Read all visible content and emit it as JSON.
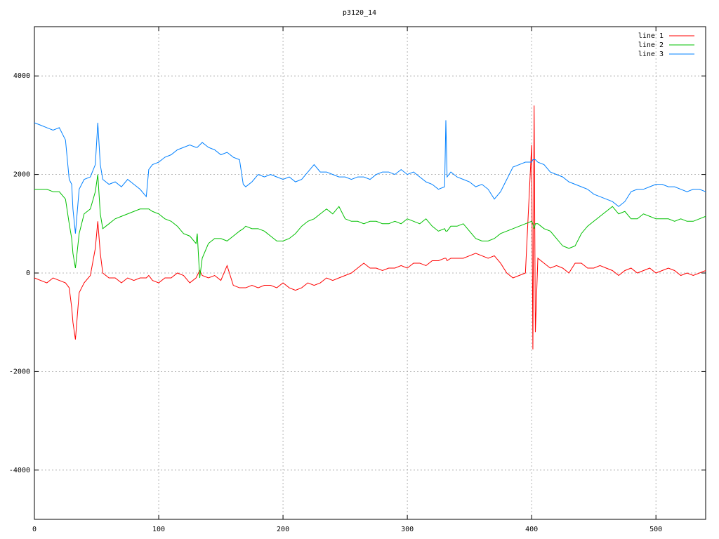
{
  "chart_data": {
    "type": "line",
    "title": "p3120_14",
    "x": [
      0,
      5,
      10,
      15,
      20,
      25,
      28,
      30,
      31,
      33,
      36,
      40,
      45,
      49,
      51,
      53,
      55,
      60,
      65,
      70,
      75,
      80,
      85,
      90,
      92,
      95,
      100,
      105,
      110,
      115,
      120,
      125,
      130,
      131,
      133,
      135,
      140,
      145,
      150,
      155,
      160,
      165,
      168,
      170,
      175,
      180,
      185,
      190,
      195,
      200,
      205,
      210,
      215,
      220,
      225,
      230,
      235,
      240,
      245,
      250,
      255,
      260,
      265,
      270,
      275,
      280,
      285,
      290,
      295,
      300,
      305,
      310,
      315,
      320,
      325,
      330,
      331,
      332,
      335,
      340,
      345,
      350,
      355,
      360,
      365,
      370,
      375,
      380,
      385,
      390,
      395,
      400,
      401,
      402,
      403,
      405,
      410,
      415,
      420,
      425,
      430,
      435,
      440,
      445,
      450,
      455,
      460,
      465,
      470,
      475,
      480,
      485,
      490,
      495,
      500,
      505,
      510,
      515,
      520,
      525,
      530,
      535,
      540
    ],
    "series": [
      {
        "name": "line 1",
        "color": "#ff0000",
        "values": [
          -100,
          -150,
          -200,
          -100,
          -150,
          -200,
          -300,
          -700,
          -1000,
          -1350,
          -400,
          -200,
          -50,
          500,
          1050,
          400,
          0,
          -100,
          -100,
          -200,
          -100,
          -150,
          -100,
          -100,
          -50,
          -150,
          -200,
          -100,
          -100,
          0,
          -50,
          -200,
          -100,
          -50,
          50,
          -50,
          -100,
          -50,
          -150,
          150,
          -250,
          -300,
          -300,
          -300,
          -250,
          -300,
          -250,
          -250,
          -300,
          -200,
          -300,
          -350,
          -300,
          -200,
          -250,
          -200,
          -100,
          -150,
          -100,
          -50,
          0,
          100,
          200,
          100,
          100,
          50,
          100,
          100,
          150,
          100,
          200,
          200,
          150,
          250,
          250,
          300,
          300,
          250,
          300,
          300,
          300,
          350,
          400,
          350,
          300,
          350,
          200,
          0,
          -100,
          -50,
          0,
          2600,
          -1550,
          3400,
          -1200,
          300,
          200,
          100,
          150,
          100,
          0,
          200,
          200,
          100,
          100,
          150,
          100,
          50,
          -50,
          50,
          100,
          0,
          50,
          100,
          0,
          50,
          100,
          50,
          -50,
          0,
          -50,
          0,
          50
        ]
      },
      {
        "name": "line 2",
        "color": "#00c000",
        "values": [
          1700,
          1700,
          1700,
          1650,
          1650,
          1500,
          1000,
          700,
          400,
          100,
          800,
          1200,
          1300,
          1650,
          2000,
          1200,
          900,
          1000,
          1100,
          1150,
          1200,
          1250,
          1300,
          1300,
          1300,
          1250,
          1200,
          1100,
          1050,
          950,
          800,
          750,
          600,
          800,
          -100,
          300,
          600,
          700,
          700,
          650,
          750,
          850,
          900,
          950,
          900,
          900,
          850,
          750,
          650,
          650,
          700,
          800,
          950,
          1050,
          1100,
          1200,
          1300,
          1200,
          1350,
          1100,
          1050,
          1050,
          1000,
          1050,
          1050,
          1000,
          1000,
          1050,
          1000,
          1100,
          1050,
          1000,
          1100,
          950,
          850,
          900,
          850,
          850,
          950,
          950,
          1000,
          850,
          700,
          650,
          650,
          700,
          800,
          850,
          900,
          950,
          1000,
          1050,
          1000,
          900,
          1000,
          1000,
          900,
          850,
          700,
          550,
          500,
          550,
          800,
          950,
          1050,
          1150,
          1250,
          1350,
          1200,
          1250,
          1100,
          1100,
          1200,
          1150,
          1100,
          1100,
          1100,
          1050,
          1100,
          1050,
          1050,
          1100,
          1150
        ]
      },
      {
        "name": "line 3",
        "color": "#0080ff",
        "values": [
          3050,
          3000,
          2950,
          2900,
          2950,
          2700,
          1900,
          1800,
          1300,
          800,
          1700,
          1900,
          1950,
          2200,
          3050,
          2200,
          1900,
          1800,
          1850,
          1750,
          1900,
          1800,
          1700,
          1550,
          2100,
          2200,
          2250,
          2350,
          2400,
          2500,
          2550,
          2600,
          2550,
          2550,
          2600,
          2650,
          2550,
          2500,
          2400,
          2450,
          2350,
          2300,
          1800,
          1750,
          1850,
          2000,
          1950,
          2000,
          1950,
          1900,
          1950,
          1850,
          1900,
          2050,
          2200,
          2050,
          2050,
          2000,
          1950,
          1950,
          1900,
          1950,
          1950,
          1900,
          2000,
          2050,
          2050,
          2000,
          2100,
          2000,
          2050,
          1950,
          1850,
          1800,
          1700,
          1750,
          3100,
          1950,
          2050,
          1950,
          1900,
          1850,
          1750,
          1800,
          1700,
          1500,
          1650,
          1900,
          2150,
          2200,
          2250,
          2250,
          2300,
          2300,
          2300,
          2250,
          2200,
          2050,
          2000,
          1950,
          1850,
          1800,
          1750,
          1700,
          1600,
          1550,
          1500,
          1450,
          1350,
          1450,
          1650,
          1700,
          1700,
          1750,
          1800,
          1800,
          1750,
          1750,
          1700,
          1650,
          1700,
          1700,
          1650
        ]
      }
    ],
    "xlim": [
      0,
      540
    ],
    "xticks": [
      0,
      100,
      200,
      300,
      400,
      500
    ],
    "ylim": [
      -5000,
      5000
    ],
    "yticks": [
      -4000,
      -2000,
      0,
      2000,
      4000
    ],
    "grid": true,
    "legend": "upper right"
  }
}
